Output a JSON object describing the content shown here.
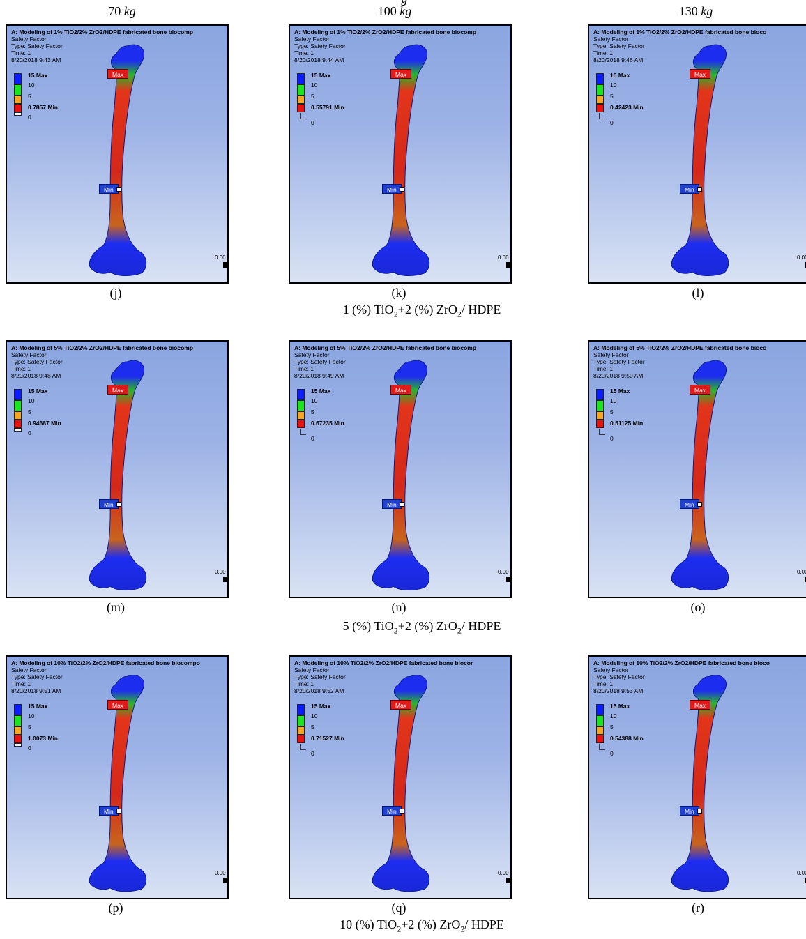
{
  "header_fragment": "g",
  "columns": [
    {
      "value": "70",
      "unit": "kg"
    },
    {
      "value": "100",
      "unit": "kg"
    },
    {
      "value": "130",
      "unit": "kg"
    }
  ],
  "panel_common": {
    "safety_factor": "Safety Factor",
    "type": "Type: Safety Factor",
    "time": "Time: 1",
    "legend": {
      "max_label": "15 Max",
      "ten": "10",
      "five": "5",
      "zero": "0"
    },
    "max_tag": "Max",
    "min_tag": "Min",
    "scale_text": "0.00"
  },
  "legend_colors": {
    "blue": "#0a1cff",
    "green": "#19e61e",
    "orange": "#f5a623",
    "red": "#ea1111",
    "white": "#ffffff"
  },
  "panels": [
    {
      "letter": "(j)",
      "title": "A: Modeling of 1% TiO2/2% ZrO2/HDPE fabricated bone biocomp",
      "datetime": "8/20/2018 9:43 AM",
      "min_value": "0.7857 Min"
    },
    {
      "letter": "(k)",
      "title": "A: Modeling of 1% TiO2/2% ZrO2/HDPE fabricated bone biocomp",
      "datetime": "8/20/2018 9:44 AM",
      "min_value": "0.55791 Min"
    },
    {
      "letter": "(l)",
      "title": "A: Modeling of 1% TiO2/2% ZrO2/HDPE fabricated bone bioco",
      "datetime": "8/20/2018 9:46 AM",
      "min_value": "0.42423 Min"
    },
    {
      "letter": "(m)",
      "title": "A: Modeling of 5% TiO2/2% ZrO2/HDPE fabricated bone biocomp",
      "datetime": "8/20/2018 9:48 AM",
      "min_value": "0.94687 Min"
    },
    {
      "letter": "(n)",
      "title": "A: Modeling of 5% TiO2/2% ZrO2/HDPE fabricated bone biocomp",
      "datetime": "8/20/2018 9:49 AM",
      "min_value": "0.67235 Min"
    },
    {
      "letter": "(o)",
      "title": "A: Modeling of 5% TiO2/2% ZrO2/HDPE fabricated bone bioco",
      "datetime": "8/20/2018 9:50 AM",
      "min_value": "0.51125 Min"
    },
    {
      "letter": "(p)",
      "title": "A: Modeling of 10% TiO2/2% ZrO2/HDPE fabricated bone biocompo",
      "datetime": "8/20/2018 9:51 AM",
      "min_value": "1.0073 Min"
    },
    {
      "letter": "(q)",
      "title": "A: Modeling of 10% TiO2/2% ZrO2/HDPE fabricated bone biocor",
      "datetime": "8/20/2018 9:52 AM",
      "min_value": "0.71527 Min"
    },
    {
      "letter": "(r)",
      "title": "A: Modeling of 10% TiO2/2% ZrO2/HDPE fabricated bone bioco",
      "datetime": "8/20/2018 9:53 AM",
      "min_value": "0.54388 Min"
    }
  ],
  "row_captions": [
    {
      "pct": "1",
      "pct_sym": "(%)",
      "tio2": "TiO",
      "sub2": "2",
      "plus": "+2",
      "zr": "ZrO",
      "suffix": "/ HDPE"
    },
    {
      "pct": "5",
      "pct_sym": "(%)",
      "tio2": "TiO",
      "sub2": "2",
      "plus": "+2",
      "zr": "ZrO",
      "suffix": "/ HDPE"
    },
    {
      "pct": "10",
      "pct_sym": "(%)",
      "tio2": "TiO",
      "sub2": "2",
      "plus": "+2",
      "zr": "ZrO",
      "suffix": "/ HDPE"
    }
  ]
}
